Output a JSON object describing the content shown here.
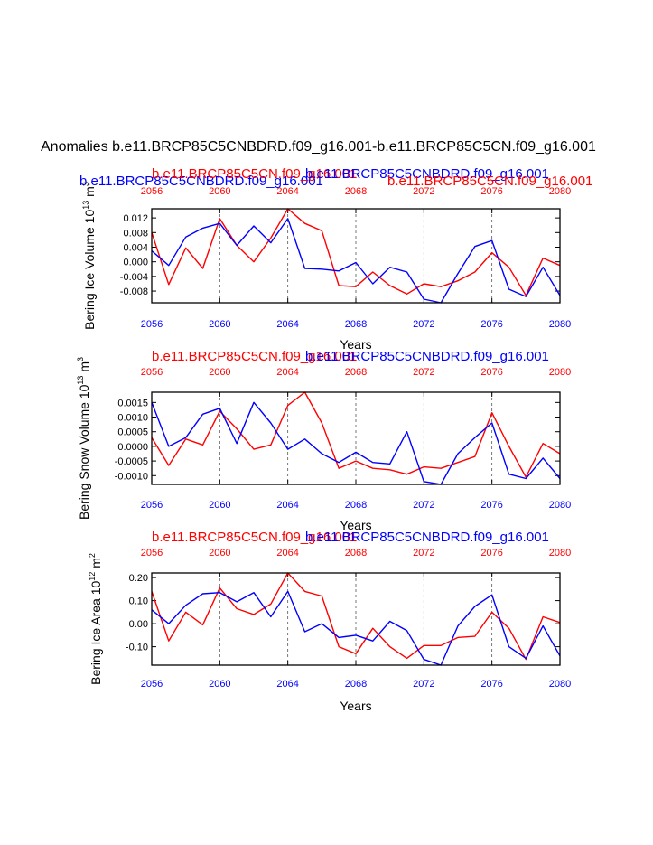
{
  "page": {
    "title": "Anomalies b.e11.BRCP85C5CNBDRD.f09_g16.001-b.e11.BRCP85C5CN.f09_g16.001",
    "colors": {
      "red_series": "#ff0000",
      "blue_series": "#0000ff",
      "axis": "#000000",
      "grid": "#555555"
    }
  },
  "chart_data": [
    {
      "type": "line",
      "ylabel": "Bering Ice Volume 10^13 m^3",
      "ylabel_main": "Bering Ice Volume 10",
      "ylabel_exp": "13",
      "ylabel_unit": "m",
      "ylabel_unit_exp": "3",
      "xlabel": "Years",
      "top_label_red_1": "b.e11.BRCP85C5CN.f09_g16.001",
      "top_label_red_2": "b.e11.BRCP85C5CN.f09_g16.001",
      "top_label_blue_1": "b.e11.BRCP85C5CNBDRD.f09_g16.001",
      "top_label_blue_2": "b.e11.BRCP85C5CNBDRD.f09_g16.001",
      "xlim": [
        2056,
        2080
      ],
      "ylim": [
        -0.0112,
        0.0145
      ],
      "xticks": [
        "2056",
        "2060",
        "2064",
        "2068",
        "2072",
        "2076",
        "2080"
      ],
      "yticks": [
        "0.012",
        "0.008",
        "0.004",
        "0.000",
        "-0.004",
        "-0.008"
      ],
      "x": [
        2056,
        2057,
        2058,
        2059,
        2060,
        2061,
        2062,
        2063,
        2064,
        2065,
        2066,
        2067,
        2068,
        2069,
        2070,
        2071,
        2072,
        2073,
        2074,
        2075,
        2076,
        2077,
        2078,
        2079,
        2080
      ],
      "series": [
        {
          "name": "b.e11.BRCP85C5CN.f09_g16.001",
          "color": "#ff0000",
          "values": [
            0.008,
            -0.0062,
            0.0038,
            -0.0018,
            0.0118,
            0.0045,
            0.0,
            0.0065,
            0.0145,
            0.0105,
            0.0085,
            -0.0065,
            -0.0068,
            -0.0028,
            -0.0065,
            -0.0088,
            -0.006,
            -0.0068,
            -0.0052,
            -0.0028,
            0.0025,
            -0.0015,
            -0.0092,
            0.001,
            -0.001
          ]
        },
        {
          "name": "b.e11.BRCP85C5CNBDRD.f09_g16.001",
          "color": "#0000ff",
          "values": [
            0.003,
            -0.001,
            0.0068,
            0.0092,
            0.0105,
            0.0045,
            0.0098,
            0.0052,
            0.0118,
            -0.0018,
            -0.002,
            -0.0025,
            -0.0002,
            -0.006,
            -0.0015,
            -0.0028,
            -0.0102,
            -0.0112,
            -0.0032,
            0.0042,
            0.0058,
            -0.0075,
            -0.0095,
            -0.0015,
            -0.0092
          ]
        }
      ]
    },
    {
      "type": "line",
      "ylabel": "Bering Snow Volume 10^13 m^3",
      "ylabel_main": "Bering Snow Volume 10",
      "ylabel_exp": "13",
      "ylabel_unit": "m",
      "ylabel_unit_exp": "3",
      "xlabel": "Years",
      "top_label_red_1": "b.e11.BRCP85C5CN.f09_g16.001",
      "top_label_blue_1": "b.e11.BRCP85C5CNBDRD.f09_g16.001",
      "xlim": [
        2056,
        2080
      ],
      "ylim": [
        -0.0013,
        0.00185
      ],
      "xticks": [
        "2056",
        "2060",
        "2064",
        "2068",
        "2072",
        "2076",
        "2080"
      ],
      "yticks": [
        "0.0015",
        "0.0010",
        "0.0005",
        "0.0000",
        "-0.0005",
        "-0.0010"
      ],
      "x": [
        2056,
        2057,
        2058,
        2059,
        2060,
        2061,
        2062,
        2063,
        2064,
        2065,
        2066,
        2067,
        2068,
        2069,
        2070,
        2071,
        2072,
        2073,
        2074,
        2075,
        2076,
        2077,
        2078,
        2079,
        2080
      ],
      "series": [
        {
          "name": "b.e11.BRCP85C5CN.f09_g16.001",
          "color": "#ff0000",
          "values": [
            0.0003,
            -0.00065,
            0.00025,
            5e-05,
            0.0012,
            0.0006,
            -0.0001,
            5e-05,
            0.0014,
            0.00185,
            0.0008,
            -0.00075,
            -0.0005,
            -0.00075,
            -0.0008,
            -0.00095,
            -0.0007,
            -0.00075,
            -0.00055,
            -0.00035,
            0.00115,
            0.0,
            -0.00105,
            0.0001,
            -0.00025
          ]
        },
        {
          "name": "b.e11.BRCP85C5CNBDRD.f09_g16.001",
          "color": "#0000ff",
          "values": [
            0.0015,
            0.0,
            0.0003,
            0.0011,
            0.0013,
            0.0001,
            0.0015,
            0.0008,
            -0.0001,
            0.00025,
            -0.00025,
            -0.00055,
            -0.0002,
            -0.00055,
            -0.0006,
            0.0005,
            -0.0012,
            -0.0013,
            -0.00025,
            0.0003,
            0.0008,
            -0.00095,
            -0.0011,
            -0.0004,
            -0.0011
          ]
        }
      ]
    },
    {
      "type": "line",
      "ylabel": "Bering Ice Area 10^12 m^2",
      "ylabel_main": "Bering Ice Area 10",
      "ylabel_exp": "12",
      "ylabel_unit": "m",
      "ylabel_unit_exp": "2",
      "xlabel": "Years",
      "top_label_red_1": "b.e11.BRCP85C5CN.f09_g16.001",
      "top_label_blue_1": "b.e11.BRCP85C5CNBDRD.f09_g16.001",
      "xlim": [
        2056,
        2080
      ],
      "ylim": [
        -0.18,
        0.22
      ],
      "xticks": [
        "2056",
        "2060",
        "2064",
        "2068",
        "2072",
        "2076",
        "2080"
      ],
      "yticks": [
        "0.20",
        "0.10",
        "0.00",
        "-0.10"
      ],
      "x": [
        2056,
        2057,
        2058,
        2059,
        2060,
        2061,
        2062,
        2063,
        2064,
        2065,
        2066,
        2067,
        2068,
        2069,
        2070,
        2071,
        2072,
        2073,
        2074,
        2075,
        2076,
        2077,
        2078,
        2079,
        2080
      ],
      "series": [
        {
          "name": "b.e11.BRCP85C5CN.f09_g16.001",
          "color": "#ff0000",
          "values": [
            0.14,
            -0.075,
            0.05,
            -0.005,
            0.155,
            0.065,
            0.04,
            0.085,
            0.22,
            0.14,
            0.12,
            -0.1,
            -0.13,
            -0.02,
            -0.1,
            -0.15,
            -0.095,
            -0.095,
            -0.06,
            -0.055,
            0.05,
            -0.02,
            -0.155,
            0.03,
            0.005
          ]
        },
        {
          "name": "b.e11.BRCP85C5CNBDRD.f09_g16.001",
          "color": "#0000ff",
          "values": [
            0.06,
            0.0,
            0.08,
            0.13,
            0.135,
            0.095,
            0.135,
            0.03,
            0.14,
            -0.035,
            0.0,
            -0.06,
            -0.05,
            -0.075,
            0.01,
            -0.03,
            -0.155,
            -0.18,
            -0.01,
            0.075,
            0.125,
            -0.1,
            -0.15,
            -0.01,
            -0.14
          ]
        }
      ]
    }
  ]
}
